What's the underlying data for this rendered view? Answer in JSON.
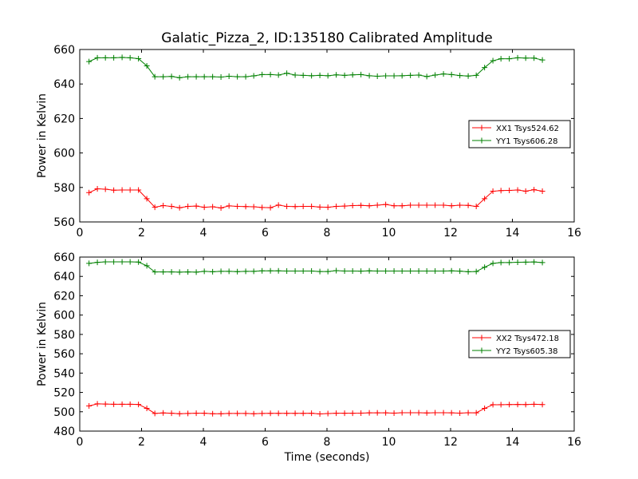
{
  "chart_data": [
    {
      "type": "line",
      "title": "Galatic_Pizza_2, ID:135180 Calibrated Amplitude",
      "xlabel": "",
      "ylabel": "Power in Kelvin",
      "xlim": [
        0,
        16
      ],
      "ylim": [
        560,
        660
      ],
      "xticks": [
        0,
        2,
        4,
        6,
        8,
        10,
        12,
        14,
        16
      ],
      "yticks": [
        560,
        580,
        600,
        620,
        640,
        660
      ],
      "grid": false,
      "legend_position": "right",
      "x": [
        0.3,
        0.57,
        0.83,
        1.1,
        1.37,
        1.63,
        1.9,
        2.17,
        2.43,
        2.7,
        2.97,
        3.23,
        3.5,
        3.77,
        4.03,
        4.3,
        4.57,
        4.83,
        5.1,
        5.37,
        5.63,
        5.9,
        6.17,
        6.43,
        6.7,
        6.97,
        7.23,
        7.5,
        7.77,
        8.03,
        8.3,
        8.57,
        8.83,
        9.1,
        9.37,
        9.63,
        9.9,
        10.17,
        10.43,
        10.7,
        10.97,
        11.23,
        11.5,
        11.77,
        12.03,
        12.3,
        12.57,
        12.83,
        13.1,
        13.37,
        13.63,
        13.9,
        14.17,
        14.43,
        14.7,
        14.97
      ],
      "series": [
        {
          "name": "XX1 Tsys524.62",
          "color": "#ff0000",
          "values": [
            577.0,
            579.2,
            579.0,
            578.4,
            578.5,
            578.5,
            578.5,
            573.5,
            568.5,
            569.5,
            569.0,
            568.2,
            569.0,
            569.2,
            568.5,
            568.8,
            568.1,
            569.3,
            569.0,
            568.9,
            568.8,
            568.4,
            568.3,
            569.8,
            569.0,
            568.9,
            569.0,
            569.0,
            568.6,
            568.5,
            569.0,
            569.2,
            569.5,
            569.6,
            569.4,
            569.7,
            570.1,
            569.4,
            569.4,
            569.7,
            569.7,
            569.7,
            569.7,
            569.7,
            569.4,
            569.7,
            569.6,
            569.0,
            573.5,
            577.8,
            578.2,
            578.3,
            578.5,
            577.8,
            578.7,
            577.8
          ]
        },
        {
          "name": "YY1 Tsys606.28",
          "color": "#008000",
          "values": [
            653.0,
            655.2,
            655.2,
            655.2,
            655.4,
            655.2,
            654.7,
            650.5,
            644.2,
            644.2,
            644.4,
            643.6,
            644.2,
            644.2,
            644.2,
            644.2,
            644.0,
            644.5,
            644.2,
            644.2,
            644.7,
            645.5,
            645.5,
            645.2,
            646.2,
            645.2,
            645.0,
            644.8,
            645.0,
            644.8,
            645.3,
            645.0,
            645.3,
            645.5,
            644.8,
            644.5,
            644.7,
            644.7,
            644.8,
            645.0,
            645.2,
            644.3,
            645.2,
            645.8,
            645.5,
            644.9,
            644.6,
            645.0,
            649.5,
            653.5,
            654.6,
            654.6,
            655.2,
            655.0,
            655.0,
            653.9
          ]
        }
      ]
    },
    {
      "type": "line",
      "title": "",
      "xlabel": "Time (seconds)",
      "ylabel": "Power in Kelvin",
      "xlim": [
        0,
        16
      ],
      "ylim": [
        480,
        660
      ],
      "xticks": [
        0,
        2,
        4,
        6,
        8,
        10,
        12,
        14,
        16
      ],
      "yticks": [
        480,
        500,
        520,
        540,
        560,
        580,
        600,
        620,
        640,
        660
      ],
      "grid": false,
      "legend_position": "right",
      "x": [
        0.3,
        0.57,
        0.83,
        1.1,
        1.37,
        1.63,
        1.9,
        2.17,
        2.43,
        2.7,
        2.97,
        3.23,
        3.5,
        3.77,
        4.03,
        4.3,
        4.57,
        4.83,
        5.1,
        5.37,
        5.63,
        5.9,
        6.17,
        6.43,
        6.7,
        6.97,
        7.23,
        7.5,
        7.77,
        8.03,
        8.3,
        8.57,
        8.83,
        9.1,
        9.37,
        9.63,
        9.9,
        10.17,
        10.43,
        10.7,
        10.97,
        11.23,
        11.5,
        11.77,
        12.03,
        12.3,
        12.57,
        12.83,
        13.1,
        13.37,
        13.63,
        13.9,
        14.17,
        14.43,
        14.7,
        14.97
      ],
      "series": [
        {
          "name": "XX2 Tsys472.18",
          "color": "#ff0000",
          "values": [
            506.0,
            508.2,
            508.0,
            507.8,
            507.8,
            507.8,
            507.6,
            503.5,
            498.3,
            498.8,
            498.5,
            498.0,
            498.3,
            498.5,
            498.5,
            498.0,
            498.0,
            498.3,
            498.3,
            498.3,
            498.0,
            498.3,
            498.4,
            498.4,
            498.4,
            498.4,
            498.4,
            498.5,
            497.8,
            498.2,
            498.5,
            498.5,
            498.5,
            498.6,
            498.9,
            498.9,
            498.9,
            498.6,
            499.0,
            499.0,
            499.0,
            498.8,
            499.0,
            499.0,
            498.9,
            498.6,
            499.0,
            498.9,
            503.5,
            507.3,
            507.3,
            507.5,
            507.6,
            507.5,
            507.8,
            507.5
          ]
        },
        {
          "name": "YY2 Tsys605.38",
          "color": "#008000",
          "values": [
            653.5,
            654.5,
            655.0,
            655.0,
            655.0,
            655.0,
            654.8,
            651.0,
            644.6,
            644.6,
            644.6,
            644.4,
            644.6,
            644.4,
            645.2,
            644.8,
            645.2,
            645.2,
            644.9,
            645.2,
            645.2,
            645.8,
            645.8,
            645.8,
            645.6,
            645.6,
            645.6,
            645.6,
            645.0,
            645.0,
            646.0,
            645.6,
            645.6,
            645.4,
            645.8,
            645.6,
            645.6,
            645.6,
            645.6,
            645.6,
            645.6,
            645.6,
            645.6,
            645.6,
            645.8,
            645.4,
            644.8,
            645.0,
            649.5,
            653.5,
            654.3,
            654.3,
            654.6,
            654.7,
            654.9,
            654.3
          ]
        }
      ]
    }
  ]
}
